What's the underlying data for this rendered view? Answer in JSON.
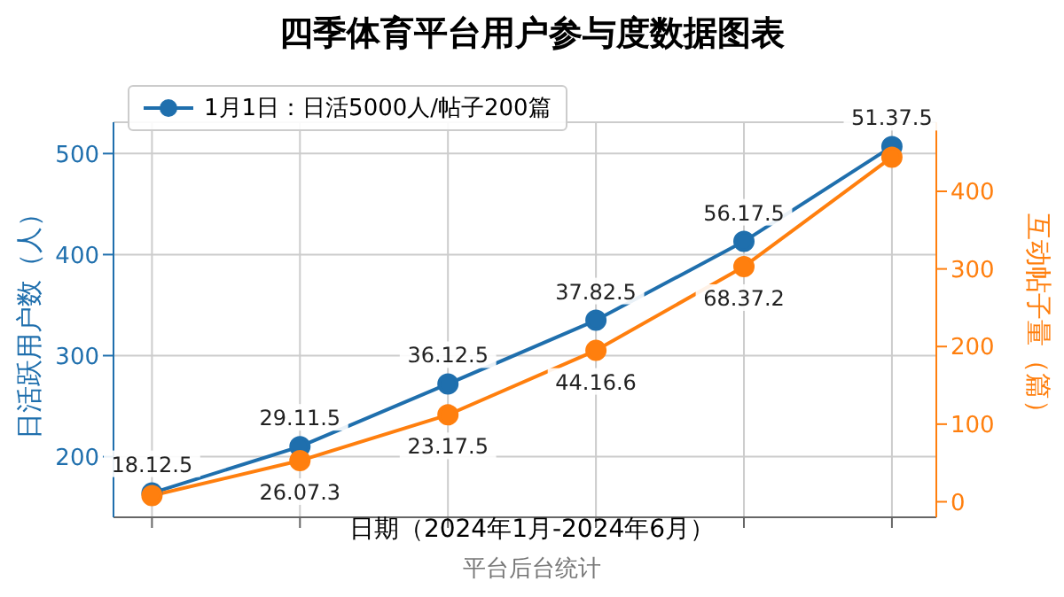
{
  "chart_data": {
    "type": "line",
    "title": "四季体育平台用户参与度数据图表",
    "xlabel": "日期（2024年1月-2024年6月）",
    "ylabel": "日活跃用户数（人）",
    "y2label": "互动帖子量（篇）",
    "annotations": [
      "平台后台统计"
    ],
    "categories": [
      null,
      null,
      null,
      null,
      null,
      null
    ],
    "series": [
      {
        "name": "1月1日：日活5000人/帖子200篇",
        "color": "#1f6fad",
        "values": [
          164,
          210,
          272,
          335,
          413,
          507
        ],
        "value_labels": [
          "18.12.5",
          "29.11.5",
          "36.12.5",
          "37.82.5",
          "56.17.5",
          "51.37.5"
        ]
      },
      {
        "color": "#ff7f0e",
        "axis": "y2",
        "values": [
          8,
          53,
          112,
          195,
          303,
          444
        ],
        "value_labels": [
          null,
          "26.07.3",
          "23.17.5",
          "44.16.6",
          "68.37.2",
          null
        ]
      }
    ],
    "ylim": [
      140,
      531
    ],
    "yticks": [
      200,
      300,
      400,
      500
    ],
    "y2lim": [
      -20,
      489
    ],
    "y2ticks": [
      0,
      100,
      200,
      300,
      400
    ],
    "grid": true,
    "legend": "top left",
    "marker": "circle",
    "line_style": "solid"
  }
}
